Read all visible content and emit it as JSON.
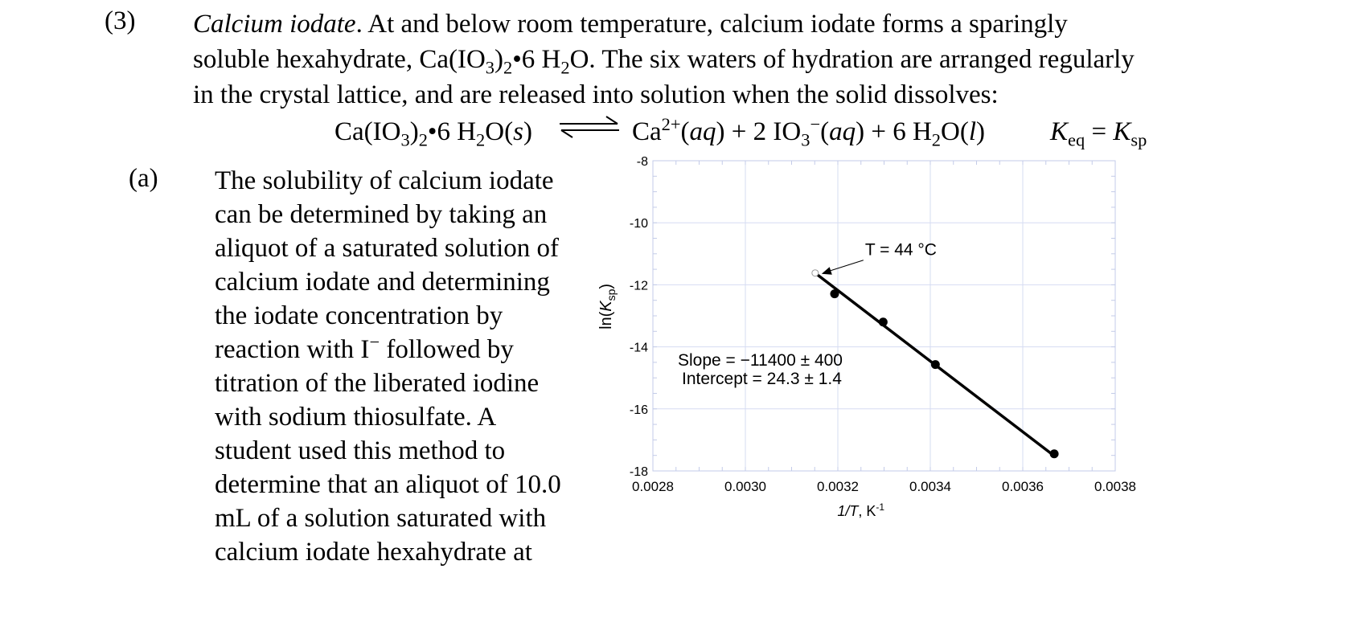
{
  "question": {
    "number": "(3)",
    "title": "Calcium iodate",
    "intro_lines": [
      ". At and below room temperature, calcium iodate forms a sparingly",
      "soluble hexahydrate, Ca(IO3)2•6 H2O.  The six waters of hydration are arranged regularly",
      "in the crystal lattice, and are released into solution when the solid dissolves:"
    ],
    "equation": {
      "reactant": "Ca(IO3)2•6 H2O(s)",
      "arrow": "⇌",
      "products": "Ca2+(aq) + 2 IO3−(aq) + 6 H2O(l)",
      "constant": "Keq = Ksp"
    }
  },
  "part_a": {
    "label": "(a)",
    "lines": [
      "The solubility of calcium iodate",
      "can be determined by taking an",
      "aliquot of a saturated solution of",
      "calcium iodate and determining",
      "the iodate concentration by",
      "reaction with I− followed by",
      "titration of the liberated iodine",
      "with sodium thiosulfate.  A",
      "student used this method to",
      "determine that an aliquot of 10.0",
      "mL of a solution saturated with",
      "calcium iodate hexahydrate at"
    ]
  },
  "chart_data": {
    "type": "scatter",
    "xlabel": "1/T, K-1",
    "ylabel": "ln(Ksp)",
    "xlim": [
      0.0028,
      0.0038
    ],
    "ylim": [
      -18,
      -8
    ],
    "xticks": [
      "0.0028",
      "0.0030",
      "0.0032",
      "0.0034",
      "0.0036",
      "0.0038"
    ],
    "yticks": [
      "-8",
      "-10",
      "-12",
      "-14",
      "-16",
      "-18"
    ],
    "grid": true,
    "points": [
      {
        "x": 0.003193,
        "y": -12.29
      },
      {
        "x": 0.003298,
        "y": -13.2
      },
      {
        "x": 0.003411,
        "y": -14.57
      },
      {
        "x": 0.003668,
        "y": -17.45
      }
    ],
    "fit_line": {
      "slope": -11400,
      "intercept": 24.3,
      "x_start": 0.003151,
      "x_end": 0.003668
    },
    "open_point": {
      "x": 0.003151,
      "y": -11.62
    },
    "annotations": {
      "temperature": "T = 44 °C",
      "slope": "Slope = −11400 ± 400",
      "intercept": "Intercept = 24.3 ± 1.4"
    },
    "colors": {
      "grid": "#d6dcf2",
      "frame": "#c3cbe8",
      "line": "#000000",
      "axis_text": "#000000"
    }
  }
}
